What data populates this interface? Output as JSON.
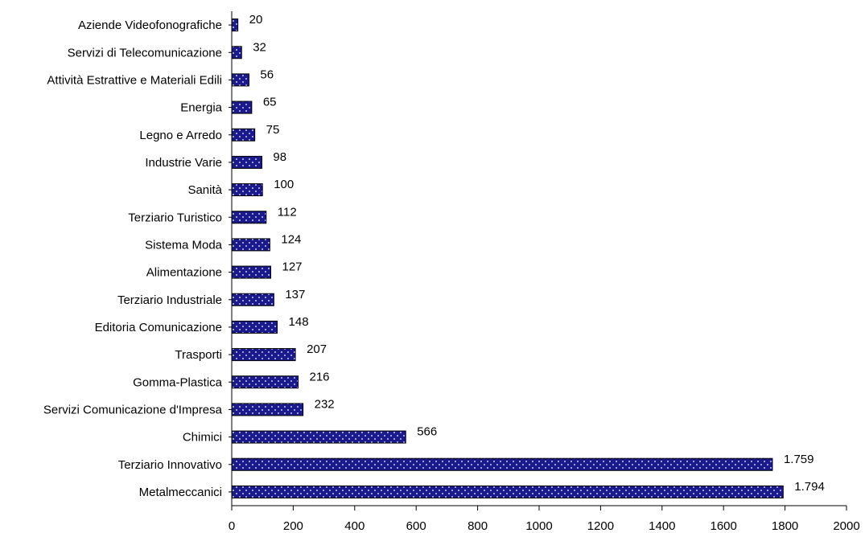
{
  "chart_data": {
    "type": "bar",
    "orientation": "horizontal",
    "title": "",
    "xlabel": "",
    "ylabel": "",
    "xlim": [
      0,
      2000
    ],
    "x_ticks": [
      0,
      200,
      400,
      600,
      800,
      1000,
      1200,
      1400,
      1600,
      1800,
      2000
    ],
    "grid": false,
    "legend": "none",
    "bar_color": "#1a1a8c",
    "bar_pattern": "white dots",
    "categories": [
      "Aziende Videofonografiche",
      "Servizi di Telecomunicazione",
      "Attività Estrattive e Materiali Edili",
      "Energia",
      "Legno e Arredo",
      "Industrie Varie",
      "Sanità",
      "Terziario Turistico",
      "Sistema Moda",
      "Alimentazione",
      "Terziario Industriale",
      "Editoria Comunicazione",
      "Trasporti",
      "Gomma-Plastica",
      "Servizi Comunicazione d'Impresa",
      "Chimici",
      "Terziario Innovativo",
      "Metalmeccanici"
    ],
    "values": [
      20,
      32,
      56,
      65,
      75,
      98,
      100,
      112,
      124,
      127,
      137,
      148,
      207,
      216,
      232,
      566,
      1759,
      1794
    ],
    "value_labels": [
      "20",
      "32",
      "56",
      "65",
      "75",
      "98",
      "100",
      "112",
      "124",
      "127",
      "137",
      "148",
      "207",
      "216",
      "232",
      "566",
      "1.759",
      "1.794"
    ]
  }
}
